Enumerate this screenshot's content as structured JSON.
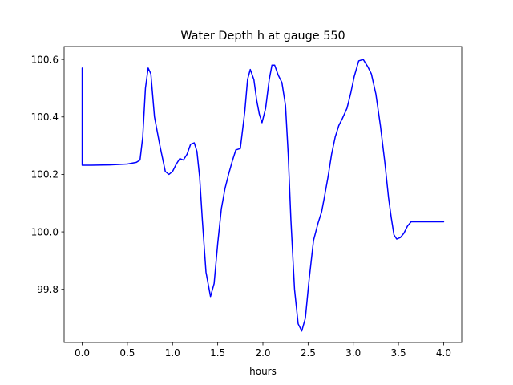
{
  "chart_data": {
    "type": "line",
    "title": "Water Depth h at gauge 550",
    "xlabel": "hours",
    "ylabel": "",
    "xlim": [
      -0.2,
      4.2
    ],
    "ylim": [
      99.615,
      100.645
    ],
    "xticks": [
      0.0,
      0.5,
      1.0,
      1.5,
      2.0,
      2.5,
      3.0,
      3.5,
      4.0
    ],
    "xtick_labels": [
      "0.0",
      "0.5",
      "1.0",
      "1.5",
      "2.0",
      "2.5",
      "3.0",
      "3.5",
      "4.0"
    ],
    "yticks": [
      99.8,
      100.0,
      100.2,
      100.4,
      100.6
    ],
    "ytick_labels": [
      "99.8",
      "100.0",
      "100.2",
      "100.4",
      "100.6"
    ],
    "grid": false,
    "legend": "none",
    "series": [
      {
        "color": "#0000ff",
        "x": [
          0.0,
          0.0,
          0.1,
          0.3,
          0.5,
          0.6,
          0.64,
          0.67,
          0.7,
          0.73,
          0.76,
          0.8,
          0.86,
          0.92,
          0.96,
          1.0,
          1.04,
          1.08,
          1.12,
          1.16,
          1.2,
          1.24,
          1.27,
          1.3,
          1.33,
          1.37,
          1.42,
          1.46,
          1.5,
          1.54,
          1.58,
          1.62,
          1.66,
          1.7,
          1.75,
          1.8,
          1.83,
          1.86,
          1.9,
          1.93,
          1.96,
          1.99,
          2.03,
          2.07,
          2.1,
          2.13,
          2.17,
          2.21,
          2.25,
          2.28,
          2.31,
          2.35,
          2.39,
          2.43,
          2.47,
          2.51,
          2.56,
          2.61,
          2.65,
          2.68,
          2.72,
          2.76,
          2.8,
          2.84,
          2.88,
          2.93,
          2.97,
          3.01,
          3.06,
          3.11,
          3.16,
          3.2,
          3.25,
          3.3,
          3.35,
          3.39,
          3.42,
          3.45,
          3.48,
          3.52,
          3.56,
          3.6,
          3.64,
          3.68,
          3.72,
          3.76,
          3.8,
          3.84,
          3.88,
          3.92,
          3.96,
          4.0
        ],
        "y": [
          100.57,
          100.232,
          100.232,
          100.233,
          100.236,
          100.242,
          100.25,
          100.33,
          100.5,
          100.57,
          100.55,
          100.4,
          100.3,
          100.21,
          100.2,
          100.21,
          100.235,
          100.255,
          100.25,
          100.27,
          100.305,
          100.31,
          100.28,
          100.19,
          100.04,
          99.86,
          99.775,
          99.82,
          99.96,
          100.08,
          100.15,
          100.2,
          100.245,
          100.285,
          100.29,
          100.42,
          100.53,
          100.565,
          100.53,
          100.46,
          100.41,
          100.38,
          100.43,
          100.53,
          100.58,
          100.58,
          100.545,
          100.52,
          100.44,
          100.27,
          100.04,
          99.8,
          99.68,
          99.655,
          99.7,
          99.83,
          99.97,
          100.03,
          100.07,
          100.12,
          100.19,
          100.27,
          100.33,
          100.37,
          100.395,
          100.43,
          100.48,
          100.54,
          100.595,
          100.6,
          100.575,
          100.55,
          100.48,
          100.37,
          100.24,
          100.12,
          100.05,
          99.99,
          99.975,
          99.98,
          99.995,
          100.02,
          100.035,
          100.035,
          100.035,
          100.035,
          100.035,
          100.035,
          100.035,
          100.035,
          100.035,
          100.035
        ]
      }
    ]
  }
}
